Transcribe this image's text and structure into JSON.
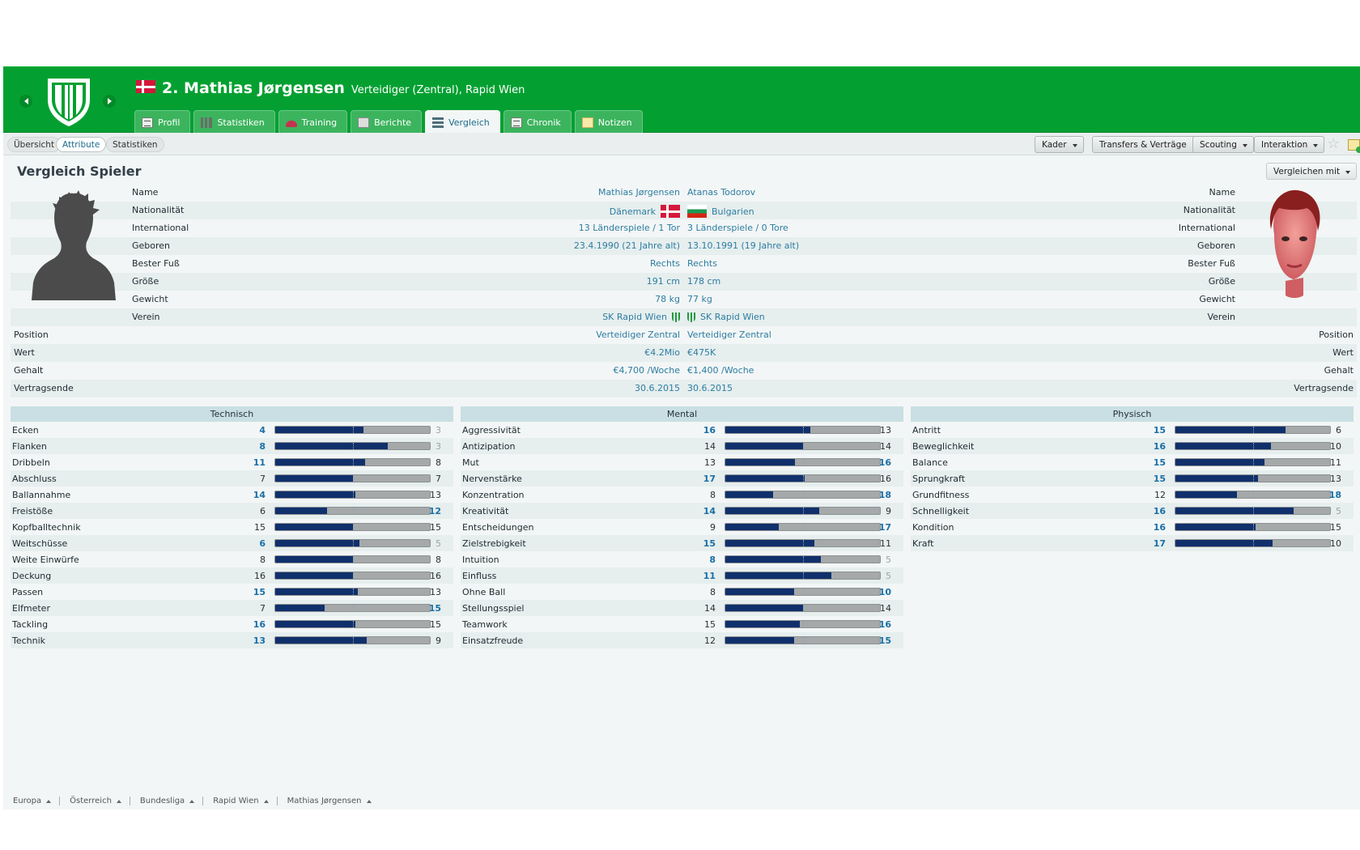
{
  "header": {
    "title": "2. Mathias Jørgensen",
    "subtitle": "Verteidiger (Zentral), Rapid Wien",
    "tabs": [
      {
        "label": "Profil",
        "icon": "profile-icon"
      },
      {
        "label": "Statistiken",
        "icon": "stats-icon"
      },
      {
        "label": "Training",
        "icon": "training-icon"
      },
      {
        "label": "Berichte",
        "icon": "reports-icon"
      },
      {
        "label": "Vergleich",
        "icon": "compare-icon",
        "active": true
      },
      {
        "label": "Chronik",
        "icon": "history-icon"
      },
      {
        "label": "Notizen",
        "icon": "notes-icon"
      }
    ]
  },
  "subnav": {
    "pills": [
      "Übersicht",
      "Attribute",
      "Statistiken"
    ],
    "active_pill": "Attribute",
    "menus": [
      "Kader",
      "Transfers & Verträge",
      "Scouting",
      "Interaktion"
    ]
  },
  "compare": {
    "title": "Vergleich Spieler",
    "compare_with": "Vergleichen mit",
    "rows": [
      {
        "label": "Name",
        "left": "Mathias Jørgensen",
        "right": "Atanas Todorov"
      },
      {
        "label": "Nationalität",
        "left": "Dänemark",
        "right": "Bulgarien"
      },
      {
        "label": "International",
        "left": "13 Länderspiele / 1 Tor",
        "right": "3 Länderspiele / 0 Tore"
      },
      {
        "label": "Geboren",
        "left": "23.4.1990 (21 Jahre alt)",
        "right": "13.10.1991 (19 Jahre alt)"
      },
      {
        "label": "Bester Fuß",
        "left": "Rechts",
        "right": "Rechts"
      },
      {
        "label": "Größe",
        "left": "191 cm",
        "right": "178 cm"
      },
      {
        "label": "Gewicht",
        "left": "78 kg",
        "right": "77 kg"
      },
      {
        "label": "Verein",
        "left": "SK Rapid Wien",
        "right": "SK Rapid Wien"
      },
      {
        "label": "Position",
        "left": "Verteidiger Zentral",
        "right": "Verteidiger Zentral"
      },
      {
        "label": "Wert",
        "left": "€4.2Mio",
        "right": "€475K"
      },
      {
        "label": "Gehalt",
        "left": "€4,700 /Woche",
        "right": "€1,400 /Woche"
      },
      {
        "label": "Vertragsende",
        "left": "30.6.2015",
        "right": "30.6.2015"
      }
    ]
  },
  "attributes": {
    "technisch": {
      "title": "Technisch",
      "rows": [
        {
          "name": "Ecken",
          "a": 4,
          "b": 3
        },
        {
          "name": "Flanken",
          "a": 8,
          "b": 3
        },
        {
          "name": "Dribbeln",
          "a": 11,
          "b": 8
        },
        {
          "name": "Abschluss",
          "a": 7,
          "b": 7
        },
        {
          "name": "Ballannahme",
          "a": 14,
          "b": 13
        },
        {
          "name": "Freistöße",
          "a": 6,
          "b": 12
        },
        {
          "name": "Kopfballtechnik",
          "a": 15,
          "b": 15
        },
        {
          "name": "Weitschüsse",
          "a": 6,
          "b": 5
        },
        {
          "name": "Weite Einwürfe",
          "a": 8,
          "b": 8
        },
        {
          "name": "Deckung",
          "a": 16,
          "b": 16
        },
        {
          "name": "Passen",
          "a": 15,
          "b": 13
        },
        {
          "name": "Elfmeter",
          "a": 7,
          "b": 15
        },
        {
          "name": "Tackling",
          "a": 16,
          "b": 15
        },
        {
          "name": "Technik",
          "a": 13,
          "b": 9
        }
      ]
    },
    "mental": {
      "title": "Mental",
      "rows": [
        {
          "name": "Aggressivität",
          "a": 16,
          "b": 13
        },
        {
          "name": "Antizipation",
          "a": 14,
          "b": 14
        },
        {
          "name": "Mut",
          "a": 13,
          "b": 16
        },
        {
          "name": "Nervenstärke",
          "a": 17,
          "b": 16
        },
        {
          "name": "Konzentration",
          "a": 8,
          "b": 18
        },
        {
          "name": "Kreativität",
          "a": 14,
          "b": 9
        },
        {
          "name": "Entscheidungen",
          "a": 9,
          "b": 17
        },
        {
          "name": "Zielstrebigkeit",
          "a": 15,
          "b": 11
        },
        {
          "name": "Intuition",
          "a": 8,
          "b": 5
        },
        {
          "name": "Einfluss",
          "a": 11,
          "b": 5
        },
        {
          "name": "Ohne Ball",
          "a": 8,
          "b": 10
        },
        {
          "name": "Stellungsspiel",
          "a": 14,
          "b": 14
        },
        {
          "name": "Teamwork",
          "a": 15,
          "b": 16
        },
        {
          "name": "Einsatzfreude",
          "a": 12,
          "b": 15
        }
      ]
    },
    "physisch": {
      "title": "Physisch",
      "rows": [
        {
          "name": "Antritt",
          "a": 15,
          "b": 6
        },
        {
          "name": "Beweglichkeit",
          "a": 16,
          "b": 10
        },
        {
          "name": "Balance",
          "a": 15,
          "b": 11
        },
        {
          "name": "Sprungkraft",
          "a": 15,
          "b": 13
        },
        {
          "name": "Grundfitness",
          "a": 12,
          "b": 18
        },
        {
          "name": "Schnelligkeit",
          "a": 16,
          "b": 5
        },
        {
          "name": "Kondition",
          "a": 16,
          "b": 15
        },
        {
          "name": "Kraft",
          "a": 17,
          "b": 10
        }
      ]
    }
  },
  "breadcrumb": [
    "Europa",
    "Österreich",
    "Bundesliga",
    "Rapid Wien",
    "Mathias Jørgensen"
  ],
  "colors": {
    "header_green": "#03a031",
    "bar_fill": "#10306c",
    "bar_track": "#a5a9aa",
    "link_blue": "#2d7da1"
  }
}
